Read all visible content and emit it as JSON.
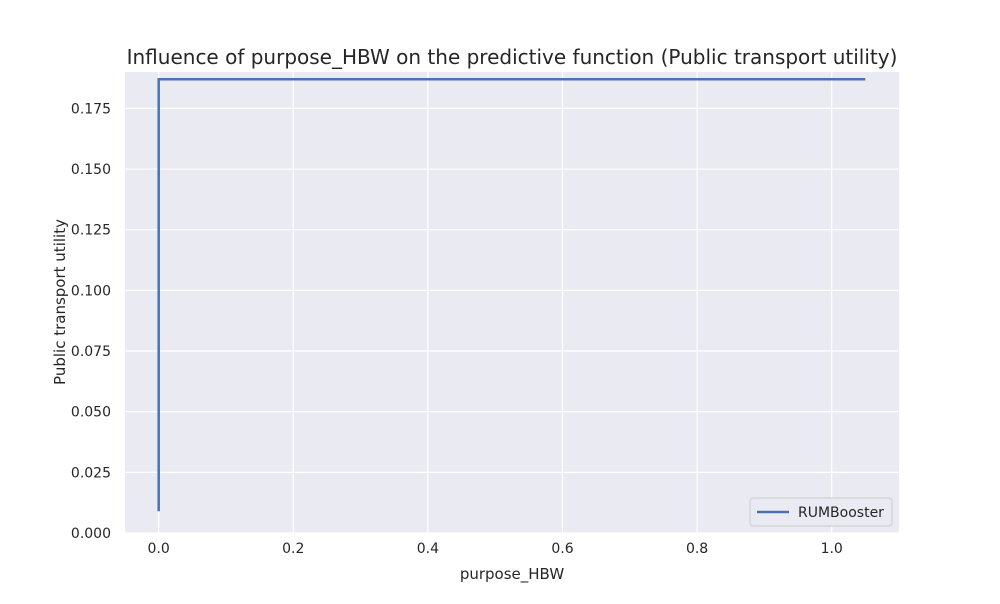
{
  "chart_data": {
    "type": "line",
    "title": "Influence of purpose_HBW on the predictive function (Public transport utility)",
    "xlabel": "purpose_HBW",
    "ylabel": "Public transport utility",
    "xlim": [
      -0.05,
      1.1
    ],
    "ylim": [
      0.0,
      0.19
    ],
    "xticks": [
      0.0,
      0.2,
      0.4,
      0.6,
      0.8,
      1.0
    ],
    "xtick_labels": [
      "0.0",
      "0.2",
      "0.4",
      "0.6",
      "0.8",
      "1.0"
    ],
    "yticks": [
      0.0,
      0.025,
      0.05,
      0.075,
      0.1,
      0.125,
      0.15,
      0.175
    ],
    "ytick_labels": [
      "0.000",
      "0.025",
      "0.050",
      "0.075",
      "0.100",
      "0.125",
      "0.150",
      "0.175"
    ],
    "grid": true,
    "legend_position": "lower-right",
    "series": [
      {
        "name": "RUMBooster",
        "color": "#4c72b0",
        "x": [
          0.0,
          0.0,
          1.05
        ],
        "y": [
          0.009,
          0.187,
          0.187
        ]
      }
    ]
  },
  "colors": {
    "plot_background": "#eaeaf2",
    "grid": "#ffffff",
    "text": "#262626"
  }
}
